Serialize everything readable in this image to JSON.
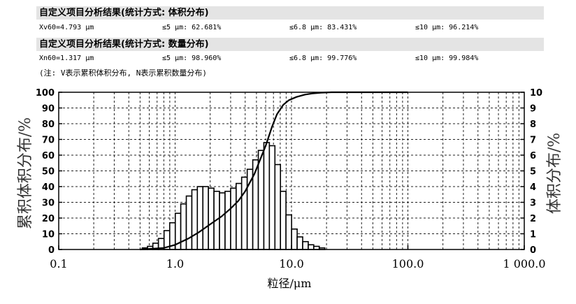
{
  "report": {
    "volume": {
      "heading": "自定义项目分析结果(统计方式: 体积分布)",
      "stats": [
        "Xv60=4.793 μm",
        "≤5 μm: 62.681%",
        "≤6.8 μm: 83.431%",
        "≤10 μm: 96.214%"
      ]
    },
    "number": {
      "heading": "自定义项目分析结果(统计方式: 数量分布)",
      "stats": [
        "Xn60=1.317 μm",
        "≤5 μm: 98.960%",
        "≤6.8 μm: 99.776%",
        "≤10 μm: 99.984%"
      ]
    },
    "note": "(注: V表示累积体积分布, N表示累积数量分布)"
  },
  "chart_data": {
    "type": "bar",
    "xlabel": "粒径/μm",
    "ylabel_left": "累积体积分布/%",
    "ylabel_right": "体积分布/%",
    "x_scale": "log",
    "xlim": [
      0.1,
      1000
    ],
    "x_ticks": [
      "0.1",
      "1.0",
      "10.0",
      "100.0",
      "1 000.0"
    ],
    "ylim_left": [
      0,
      100
    ],
    "ylim_right": [
      0,
      10
    ],
    "y_ticks_left": [
      "0",
      "10",
      "20",
      "30",
      "40",
      "50",
      "60",
      "70",
      "80",
      "90",
      "100"
    ],
    "y_ticks_right": [
      "0",
      "1",
      "2",
      "3",
      "4",
      "5",
      "6",
      "7",
      "8",
      "9",
      "10"
    ],
    "grid": "dashed",
    "series": [
      {
        "kind": "bar",
        "axis": "right",
        "x": [
          0.55,
          0.61,
          0.68,
          0.76,
          0.85,
          0.95,
          1.06,
          1.18,
          1.32,
          1.47,
          1.64,
          1.83,
          2.04,
          2.28,
          2.54,
          2.84,
          3.17,
          3.53,
          3.94,
          4.4,
          4.91,
          5.48,
          6.11,
          6.82,
          7.61,
          8.49,
          9.47,
          10.6,
          11.8,
          13.2,
          14.7,
          16.4,
          18.3
        ],
        "values": [
          0.1,
          0.2,
          0.4,
          0.7,
          1.2,
          1.7,
          2.3,
          2.9,
          3.4,
          3.8,
          4.0,
          4.0,
          3.9,
          3.7,
          3.6,
          3.7,
          3.9,
          4.2,
          4.6,
          5.1,
          5.7,
          6.3,
          6.8,
          6.6,
          5.4,
          3.7,
          2.2,
          1.3,
          0.8,
          0.5,
          0.3,
          0.2,
          0.1
        ]
      },
      {
        "kind": "line",
        "axis": "left",
        "x": [
          0.5,
          0.8,
          1.0,
          1.3,
          1.6,
          2.0,
          2.5,
          3.0,
          3.5,
          4.0,
          4.8,
          5.5,
          6.0,
          6.8,
          7.5,
          8.5,
          9.5,
          11,
          13,
          15,
          18,
          22,
          30,
          60,
          100
        ],
        "values": [
          0,
          1,
          3,
          7,
          11,
          16,
          21,
          26,
          31,
          37,
          48,
          59,
          66,
          78,
          86,
          92,
          95,
          97,
          98.5,
          99.2,
          99.7,
          100,
          100,
          100,
          100
        ]
      }
    ]
  }
}
